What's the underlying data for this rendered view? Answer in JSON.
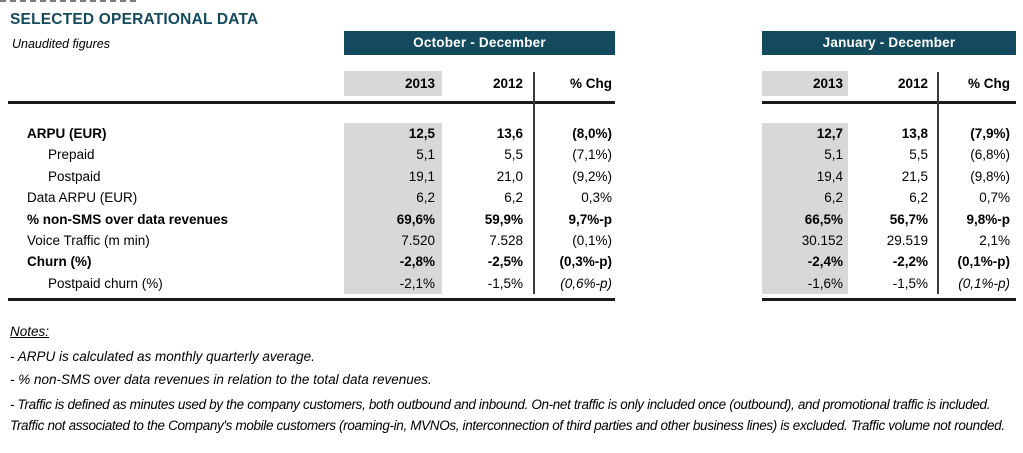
{
  "title": "SELECTED OPERATIONAL DATA",
  "subtitle": "Unaudited figures",
  "periods": {
    "oct_dec": "October - December",
    "jan_dec": "January - December"
  },
  "columns": {
    "y2013": "2013",
    "y2012": "2012",
    "chg": "% Chg"
  },
  "rows": [
    {
      "label": "ARPU (EUR)",
      "oct_dec": [
        "12,5",
        "13,6",
        "(8,0%)"
      ],
      "jan_dec": [
        "12,7",
        "13,8",
        "(7,9%)"
      ]
    },
    {
      "label": "Prepaid",
      "oct_dec": [
        "5,1",
        "5,5",
        "(7,1%)"
      ],
      "jan_dec": [
        "5,1",
        "5,5",
        "(6,8%)"
      ]
    },
    {
      "label": "Postpaid",
      "oct_dec": [
        "19,1",
        "21,0",
        "(9,2%)"
      ],
      "jan_dec": [
        "19,4",
        "21,5",
        "(9,8%)"
      ]
    },
    {
      "label": "Data ARPU (EUR)",
      "oct_dec": [
        "6,2",
        "6,2",
        "0,3%"
      ],
      "jan_dec": [
        "6,2",
        "6,2",
        "0,7%"
      ]
    },
    {
      "label": "% non-SMS over data revenues",
      "oct_dec": [
        "69,6%",
        "59,9%",
        "9,7%-p"
      ],
      "jan_dec": [
        "66,5%",
        "56,7%",
        "9,8%-p"
      ]
    },
    {
      "label": "Voice Traffic (m min)",
      "oct_dec": [
        "7.520",
        "7.528",
        "(0,1%)"
      ],
      "jan_dec": [
        "30.152",
        "29.519",
        "2,1%"
      ]
    },
    {
      "label": "Churn (%)",
      "oct_dec": [
        "-2,8%",
        "-2,5%",
        "(0,3%-p)"
      ],
      "jan_dec": [
        "-2,4%",
        "-2,2%",
        "(0,1%-p)"
      ]
    },
    {
      "label": "Postpaid churn (%)",
      "oct_dec": [
        "-2,1%",
        "-1,5%",
        "(0,6%-p)"
      ],
      "jan_dec": [
        "-1,6%",
        "-1,5%",
        "(0,1%-p)"
      ]
    }
  ],
  "notes": {
    "heading": "Notes:",
    "items": [
      "- ARPU is calculated as monthly quarterly average.",
      "- % non-SMS over data revenues in relation to the total data revenues.",
      "- Traffic is defined as minutes used by the company customers, both outbound and inbound. On-net traffic is only included once (outbound), and promotional traffic is included. Traffic not associated to the Company's mobile customers (roaming-in, MVNOs, interconnection of third parties and other business lines) is excluded. Traffic volume not rounded."
    ]
  },
  "colors": {
    "band_teal": "#134A5E",
    "title_teal": "#15495D",
    "cell_gray": "#D8D8D8",
    "rule_black": "#1b1b1b"
  }
}
